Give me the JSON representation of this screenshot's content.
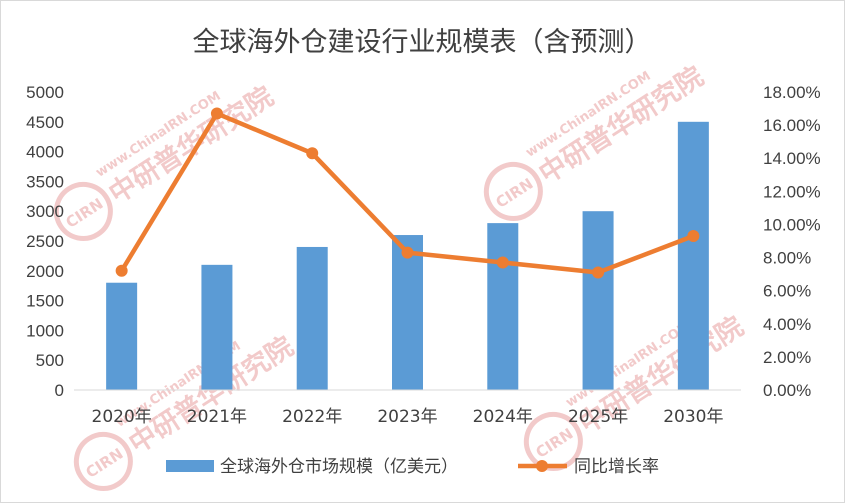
{
  "chart_data": {
    "type": "bar",
    "title": "全球海外仓建设行业规模表（含预测）",
    "categories": [
      "2020年",
      "2021年",
      "2022年",
      "2023年",
      "2024年",
      "2025年",
      "2030年"
    ],
    "series": [
      {
        "name": "全球海外仓市场规模（亿美元）",
        "type": "bar",
        "axis": "left",
        "color": "#5b9bd5",
        "values": [
          1800,
          2100,
          2400,
          2600,
          2800,
          3000,
          4500
        ]
      },
      {
        "name": "同比增长率",
        "type": "line",
        "axis": "right",
        "color": "#ed7d31",
        "values": [
          7.2,
          16.7,
          14.3,
          8.3,
          7.7,
          7.1,
          9.3
        ]
      }
    ],
    "y_left": {
      "min": 0,
      "max": 5000,
      "ticks": [
        "0",
        "500",
        "1000",
        "1500",
        "2000",
        "2500",
        "3000",
        "3500",
        "4000",
        "4500",
        "5000"
      ]
    },
    "y_right": {
      "min": 0,
      "max": 18,
      "ticks": [
        "0.00%",
        "2.00%",
        "4.00%",
        "6.00%",
        "8.00%",
        "10.00%",
        "12.00%",
        "14.00%",
        "16.00%",
        "18.00%"
      ]
    },
    "grid": false,
    "legend_position": "bottom"
  },
  "watermark": {
    "site": "www.ChinaIRN.COM",
    "org": "中研普华研究院",
    "logo": "CIRN",
    "color": "#e8a0a0"
  }
}
